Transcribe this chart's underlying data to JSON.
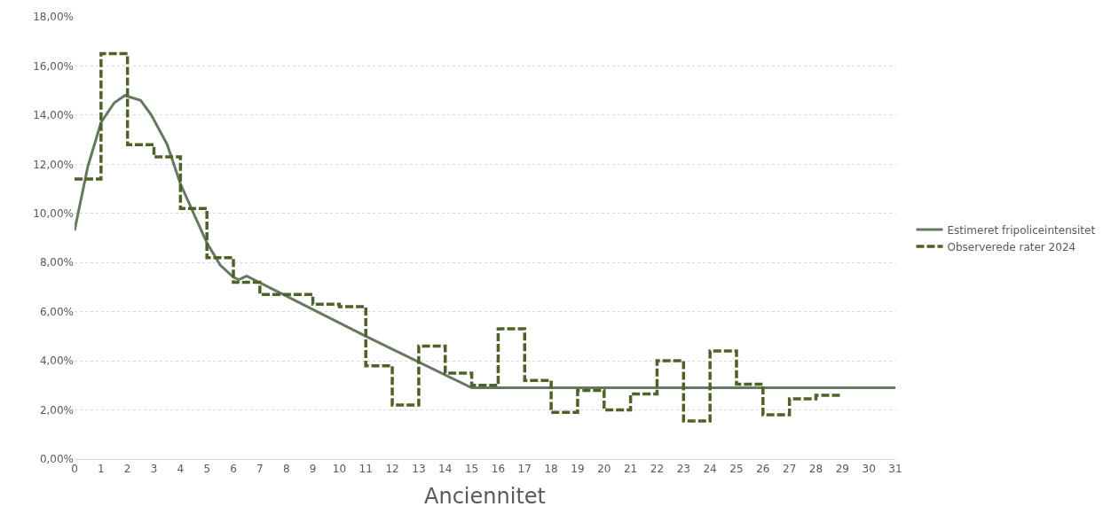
{
  "chart_data": {
    "type": "line",
    "xlabel": "Anciennitet",
    "xlim": [
      0,
      31
    ],
    "xticks": [
      0,
      1,
      2,
      3,
      4,
      5,
      6,
      7,
      8,
      9,
      10,
      11,
      12,
      13,
      14,
      15,
      16,
      17,
      18,
      19,
      20,
      21,
      22,
      23,
      24,
      25,
      26,
      27,
      28,
      29,
      30,
      31
    ],
    "ylim": [
      0,
      18
    ],
    "yticks": [
      {
        "value": 0,
        "label": "0,00%"
      },
      {
        "value": 2,
        "label": "2,00%"
      },
      {
        "value": 4,
        "label": "4,00%"
      },
      {
        "value": 6,
        "label": "6,00%"
      },
      {
        "value": 8,
        "label": "8,00%"
      },
      {
        "value": 10,
        "label": "10,00%"
      },
      {
        "value": 12,
        "label": "12,00%"
      },
      {
        "value": 14,
        "label": "14,00%"
      },
      {
        "value": 16,
        "label": "16,00%"
      },
      {
        "value": 18,
        "label": "18,00%"
      }
    ],
    "grid": "y",
    "legend": "right",
    "marker": "none",
    "series": [
      {
        "name": "Estimeret fripoliceintensitet",
        "color": "#647a5e",
        "line_style": "solid",
        "x": [
          0,
          0.5,
          1,
          1.5,
          1.9,
          2.5,
          2.9,
          3.5,
          4,
          4.5,
          5,
          5.5,
          6,
          6.2,
          6.5,
          11,
          15,
          31
        ],
        "values": [
          9.3,
          11.9,
          13.7,
          14.5,
          14.8,
          14.6,
          14.0,
          12.8,
          11.2,
          10.0,
          8.8,
          7.9,
          7.4,
          7.3,
          7.45,
          5.0,
          2.9,
          2.9
        ]
      },
      {
        "name": "Observerede rater 2024",
        "type": "step",
        "color": "#4e6228",
        "line_style": "dashed",
        "x": [
          0,
          1,
          2,
          3,
          4,
          5,
          6,
          7,
          8,
          9,
          10,
          11,
          12,
          13,
          14,
          15,
          16,
          17,
          18,
          19,
          20,
          21,
          22,
          23,
          24,
          25,
          26,
          27,
          28,
          29
        ],
        "values": [
          11.4,
          16.5,
          12.8,
          12.3,
          10.2,
          8.2,
          7.2,
          6.7,
          6.7,
          6.3,
          6.2,
          3.8,
          2.2,
          4.6,
          3.5,
          3.0,
          5.3,
          3.2,
          1.9,
          2.8,
          2.0,
          2.65,
          4.0,
          1.55,
          4.4,
          3.05,
          1.8,
          2.45,
          2.6,
          2.6
        ]
      }
    ]
  }
}
